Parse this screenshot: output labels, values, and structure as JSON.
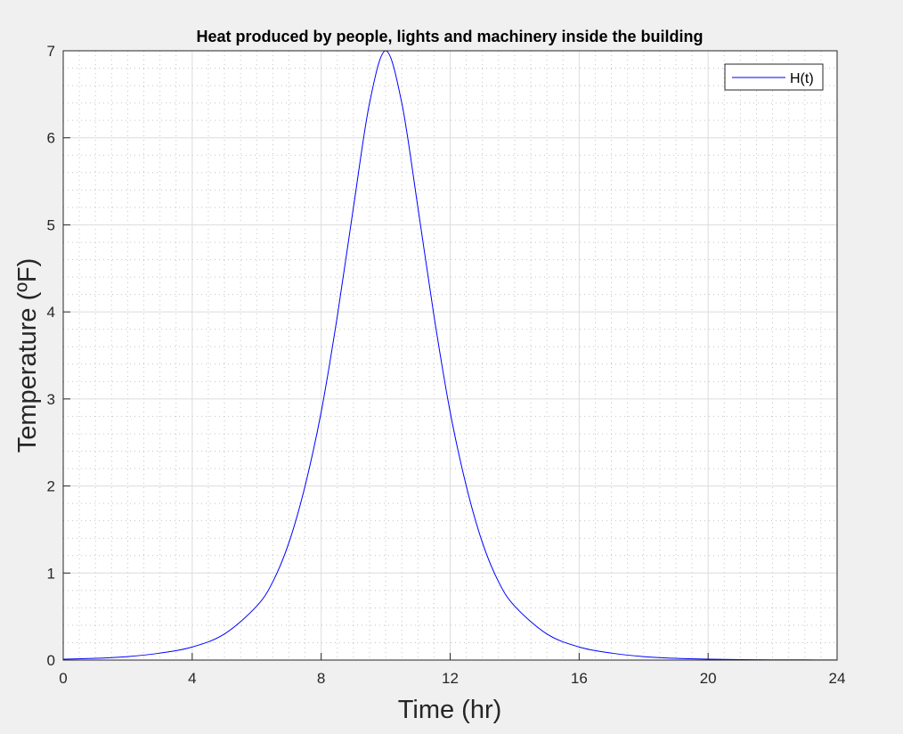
{
  "chart_data": {
    "type": "line",
    "title": "Heat produced by people, lights and machinery inside the building",
    "xlabel": "Time (hr)",
    "ylabel": "Temperature (ºF)",
    "xlim": [
      0,
      24
    ],
    "ylim": [
      0,
      7
    ],
    "xticks": [
      0,
      4,
      8,
      12,
      16,
      20,
      24
    ],
    "yticks": [
      0,
      1,
      2,
      3,
      4,
      5,
      6,
      7
    ],
    "grid": true,
    "minor_grid": true,
    "legend_position": "top-right",
    "series": [
      {
        "name": "H(t)",
        "color": "#0000ff",
        "x": [
          0,
          1,
          2,
          3,
          4,
          5,
          6,
          6.5,
          7,
          7.5,
          8,
          8.5,
          9,
          9.5,
          10,
          10.5,
          11,
          11.5,
          12,
          12.5,
          13,
          13.5,
          14,
          15,
          16,
          17,
          18,
          19,
          20,
          21,
          22,
          23,
          24
        ],
        "y": [
          0.01,
          0.02,
          0.04,
          0.08,
          0.15,
          0.3,
          0.62,
          0.9,
          1.35,
          2.0,
          2.85,
          3.95,
          5.2,
          6.4,
          7.0,
          6.4,
          5.2,
          3.95,
          2.85,
          2.0,
          1.35,
          0.9,
          0.62,
          0.3,
          0.15,
          0.08,
          0.04,
          0.02,
          0.01,
          0.005,
          0.003,
          0.002,
          0.001
        ]
      }
    ]
  }
}
